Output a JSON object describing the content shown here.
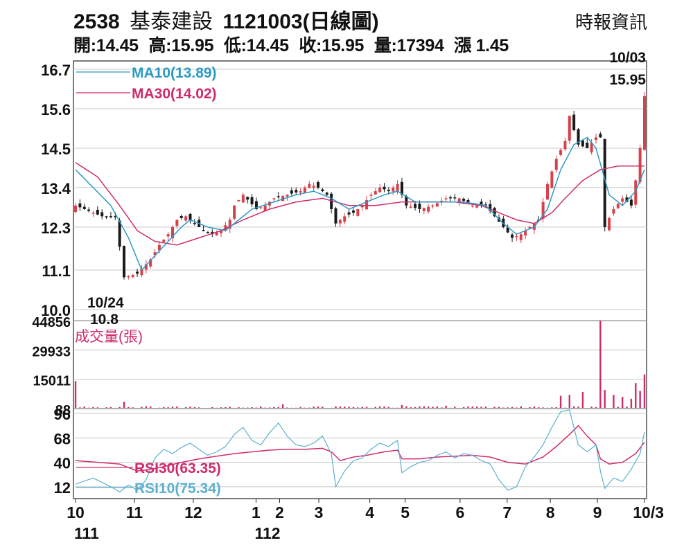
{
  "header": {
    "code": "2538",
    "name": "基泰建設",
    "date": "1121003",
    "chart_kind": "(日線圖)",
    "source": "時報資訊"
  },
  "summary": {
    "open": "開:14.45",
    "high": "高:15.95",
    "low": "低:14.45",
    "close": "收:15.95",
    "volume": "量:17394",
    "change": "漲 1.45"
  },
  "colors": {
    "up": "#d8404a",
    "down": "#1a1a1a",
    "ma10": "#2a9ac4",
    "ma30": "#cf2a6a",
    "volume": "#cf2a6a",
    "rsi10": "#5ab0cf",
    "rsi30": "#cf2a6a",
    "grid": "#c8c8c8"
  },
  "chart_data": [
    {
      "type": "candlestick",
      "panel": "price",
      "y_ticks": [
        16.7,
        15.6,
        14.5,
        13.4,
        12.3,
        11.1,
        10.0
      ],
      "ylim": [
        10.0,
        16.7
      ],
      "legend": [
        {
          "key": "ma10",
          "label": "MA10(13.89)"
        },
        {
          "key": "ma30",
          "label": "MA30(14.02)"
        }
      ],
      "annotations": [
        {
          "text": "10/24",
          "anchor": "low"
        },
        {
          "text": "10.8",
          "anchor": "low"
        },
        {
          "text": "10/03",
          "anchor": "last"
        },
        {
          "text": "15.95",
          "anchor": "last"
        }
      ],
      "close_path": [
        [
          0,
          12.9
        ],
        [
          6,
          12.6
        ],
        [
          9,
          12.6
        ],
        [
          11,
          10.9
        ],
        [
          14,
          11.0
        ],
        [
          17,
          11.4
        ],
        [
          19,
          11.8
        ],
        [
          21,
          12.1
        ],
        [
          23,
          12.5
        ],
        [
          25,
          12.6
        ],
        [
          27,
          12.4
        ],
        [
          29,
          12.2
        ],
        [
          31,
          12.1
        ],
        [
          33,
          12.2
        ],
        [
          35,
          12.5
        ],
        [
          36,
          12.9
        ],
        [
          38,
          13.2
        ],
        [
          41,
          12.8
        ],
        [
          43,
          12.9
        ],
        [
          45,
          13.1
        ],
        [
          48,
          13.2
        ],
        [
          51,
          13.3
        ],
        [
          53,
          13.5
        ],
        [
          55,
          13.4
        ],
        [
          57,
          13.2
        ],
        [
          59,
          12.4
        ],
        [
          61,
          12.6
        ],
        [
          63,
          12.7
        ],
        [
          65,
          12.9
        ],
        [
          67,
          13.2
        ],
        [
          69,
          13.4
        ],
        [
          71,
          13.3
        ],
        [
          73,
          13.5
        ],
        [
          75,
          12.9
        ],
        [
          78,
          12.8
        ],
        [
          81,
          12.9
        ],
        [
          84,
          13.1
        ],
        [
          87,
          13.1
        ],
        [
          90,
          12.9
        ],
        [
          93,
          12.9
        ],
        [
          95,
          12.6
        ],
        [
          97,
          12.3
        ],
        [
          99,
          12.0
        ],
        [
          101,
          12.1
        ],
        [
          103,
          12.3
        ],
        [
          105,
          12.5
        ],
        [
          107,
          13.5
        ],
        [
          109,
          14.2
        ],
        [
          111,
          14.7
        ],
        [
          112,
          15.4
        ],
        [
          114,
          14.6
        ],
        [
          116,
          14.5
        ],
        [
          118,
          14.8
        ],
        [
          119,
          14.8
        ],
        [
          120,
          12.3
        ],
        [
          122,
          12.8
        ],
        [
          124,
          13.1
        ],
        [
          126,
          12.9
        ],
        [
          127,
          13.6
        ],
        [
          128,
          14.5
        ],
        [
          129,
          15.95
        ]
      ],
      "ma10_path": [
        [
          0,
          13.9
        ],
        [
          4,
          13.4
        ],
        [
          8,
          12.9
        ],
        [
          12,
          12.0
        ],
        [
          15,
          11.1
        ],
        [
          18,
          11.5
        ],
        [
          21,
          11.9
        ],
        [
          24,
          12.3
        ],
        [
          26,
          12.5
        ],
        [
          30,
          12.3
        ],
        [
          34,
          12.2
        ],
        [
          37,
          12.5
        ],
        [
          40,
          12.8
        ],
        [
          45,
          13.0
        ],
        [
          50,
          13.2
        ],
        [
          54,
          13.3
        ],
        [
          58,
          13.1
        ],
        [
          62,
          12.8
        ],
        [
          66,
          13.0
        ],
        [
          70,
          13.2
        ],
        [
          73,
          13.3
        ],
        [
          77,
          13.0
        ],
        [
          82,
          13.0
        ],
        [
          88,
          13.0
        ],
        [
          93,
          12.9
        ],
        [
          97,
          12.4
        ],
        [
          100,
          12.1
        ],
        [
          104,
          12.3
        ],
        [
          107,
          12.8
        ],
        [
          110,
          13.9
        ],
        [
          113,
          14.6
        ],
        [
          116,
          14.8
        ],
        [
          118,
          14.5
        ],
        [
          121,
          13.2
        ],
        [
          124,
          12.9
        ],
        [
          127,
          13.3
        ],
        [
          129,
          13.9
        ]
      ],
      "ma30_path": [
        [
          0,
          14.1
        ],
        [
          5,
          13.7
        ],
        [
          10,
          12.9
        ],
        [
          14,
          12.2
        ],
        [
          18,
          11.9
        ],
        [
          23,
          11.8
        ],
        [
          28,
          12.0
        ],
        [
          33,
          12.2
        ],
        [
          38,
          12.5
        ],
        [
          44,
          12.8
        ],
        [
          50,
          13.0
        ],
        [
          56,
          13.1
        ],
        [
          62,
          12.9
        ],
        [
          68,
          12.9
        ],
        [
          74,
          13.0
        ],
        [
          80,
          13.0
        ],
        [
          86,
          13.0
        ],
        [
          92,
          12.9
        ],
        [
          96,
          12.7
        ],
        [
          100,
          12.5
        ],
        [
          104,
          12.4
        ],
        [
          108,
          12.7
        ],
        [
          111,
          13.1
        ],
        [
          115,
          13.6
        ],
        [
          119,
          13.9
        ],
        [
          123,
          14.0
        ],
        [
          126,
          14.0
        ],
        [
          129,
          14.0
        ]
      ]
    },
    {
      "type": "bar",
      "panel": "volume",
      "title": "成交量(張)",
      "y_ticks": [
        44856,
        29933,
        15011,
        88
      ],
      "ylim": [
        0,
        44856
      ],
      "spikes": [
        [
          0,
          14000
        ],
        [
          11,
          3500
        ],
        [
          47,
          2200
        ],
        [
          74,
          1800
        ],
        [
          84,
          1500
        ],
        [
          110,
          6500
        ],
        [
          112,
          7000
        ],
        [
          115,
          8500
        ],
        [
          119,
          44856
        ],
        [
          120,
          9500
        ],
        [
          122,
          7000
        ],
        [
          124,
          6000
        ],
        [
          126,
          5000
        ],
        [
          127,
          13000
        ],
        [
          128,
          9000
        ],
        [
          129,
          17394
        ]
      ]
    },
    {
      "type": "line",
      "panel": "rsi",
      "y_ticks": [
        96,
        68,
        40,
        12
      ],
      "ylim": [
        0,
        100
      ],
      "legend": [
        {
          "key": "rsi30",
          "label": "RSI30(63.35)"
        },
        {
          "key": "rsi10",
          "label": "RSI10(75.34)"
        }
      ],
      "rsi10_path": [
        [
          0,
          15
        ],
        [
          4,
          22
        ],
        [
          8,
          12
        ],
        [
          10,
          6
        ],
        [
          12,
          14
        ],
        [
          14,
          8
        ],
        [
          16,
          20
        ],
        [
          18,
          45
        ],
        [
          20,
          55
        ],
        [
          22,
          50
        ],
        [
          24,
          57
        ],
        [
          26,
          62
        ],
        [
          28,
          55
        ],
        [
          30,
          48
        ],
        [
          32,
          52
        ],
        [
          34,
          58
        ],
        [
          36,
          72
        ],
        [
          38,
          80
        ],
        [
          40,
          65
        ],
        [
          42,
          60
        ],
        [
          44,
          74
        ],
        [
          46,
          85
        ],
        [
          48,
          70
        ],
        [
          50,
          60
        ],
        [
          52,
          58
        ],
        [
          54,
          62
        ],
        [
          56,
          70
        ],
        [
          58,
          50
        ],
        [
          59,
          12
        ],
        [
          61,
          30
        ],
        [
          63,
          42
        ],
        [
          65,
          45
        ],
        [
          67,
          55
        ],
        [
          69,
          62
        ],
        [
          71,
          58
        ],
        [
          72,
          62
        ],
        [
          73,
          65
        ],
        [
          74,
          28
        ],
        [
          76,
          35
        ],
        [
          78,
          40
        ],
        [
          80,
          42
        ],
        [
          82,
          48
        ],
        [
          84,
          52
        ],
        [
          86,
          45
        ],
        [
          88,
          50
        ],
        [
          90,
          48
        ],
        [
          92,
          42
        ],
        [
          94,
          38
        ],
        [
          96,
          20
        ],
        [
          98,
          8
        ],
        [
          100,
          12
        ],
        [
          102,
          35
        ],
        [
          104,
          46
        ],
        [
          106,
          60
        ],
        [
          108,
          80
        ],
        [
          110,
          98
        ],
        [
          112,
          100
        ],
        [
          114,
          60
        ],
        [
          116,
          52
        ],
        [
          118,
          60
        ],
        [
          119,
          30
        ],
        [
          120,
          10
        ],
        [
          122,
          22
        ],
        [
          124,
          18
        ],
        [
          126,
          32
        ],
        [
          128,
          50
        ],
        [
          129,
          75
        ]
      ],
      "rsi30_path": [
        [
          0,
          42
        ],
        [
          5,
          40
        ],
        [
          10,
          38
        ],
        [
          14,
          30
        ],
        [
          17,
          32
        ],
        [
          20,
          35
        ],
        [
          24,
          40
        ],
        [
          28,
          44
        ],
        [
          32,
          47
        ],
        [
          36,
          50
        ],
        [
          40,
          52
        ],
        [
          44,
          54
        ],
        [
          48,
          55
        ],
        [
          52,
          55
        ],
        [
          56,
          56
        ],
        [
          58,
          52
        ],
        [
          60,
          42
        ],
        [
          63,
          46
        ],
        [
          66,
          48
        ],
        [
          70,
          52
        ],
        [
          73,
          54
        ],
        [
          74,
          44
        ],
        [
          78,
          44
        ],
        [
          82,
          46
        ],
        [
          86,
          47
        ],
        [
          90,
          48
        ],
        [
          94,
          46
        ],
        [
          98,
          40
        ],
        [
          102,
          38
        ],
        [
          106,
          46
        ],
        [
          109,
          58
        ],
        [
          112,
          72
        ],
        [
          114,
          82
        ],
        [
          116,
          70
        ],
        [
          118,
          60
        ],
        [
          119,
          44
        ],
        [
          121,
          38
        ],
        [
          124,
          40
        ],
        [
          127,
          50
        ],
        [
          129,
          63
        ]
      ]
    }
  ],
  "x_axis": {
    "ticks": [
      {
        "label": "10",
        "sub": "111",
        "day": 0
      },
      {
        "label": "11",
        "sub": "",
        "day": 15
      },
      {
        "label": "12",
        "sub": "",
        "day": 30
      },
      {
        "label": "1",
        "sub": "112",
        "day": 46
      },
      {
        "label": "2",
        "sub": "",
        "day": 52
      },
      {
        "label": "3",
        "sub": "",
        "day": 62
      },
      {
        "label": "4",
        "sub": "",
        "day": 75
      },
      {
        "label": "5",
        "sub": "",
        "day": 84
      },
      {
        "label": "6",
        "sub": "",
        "day": 98
      },
      {
        "label": "7",
        "sub": "",
        "day": 110
      },
      {
        "label": "8",
        "sub": "",
        "day": 121
      },
      {
        "label": "9",
        "sub": "",
        "day": 133
      },
      {
        "label": "10/3",
        "sub": "",
        "day": 145
      }
    ]
  }
}
